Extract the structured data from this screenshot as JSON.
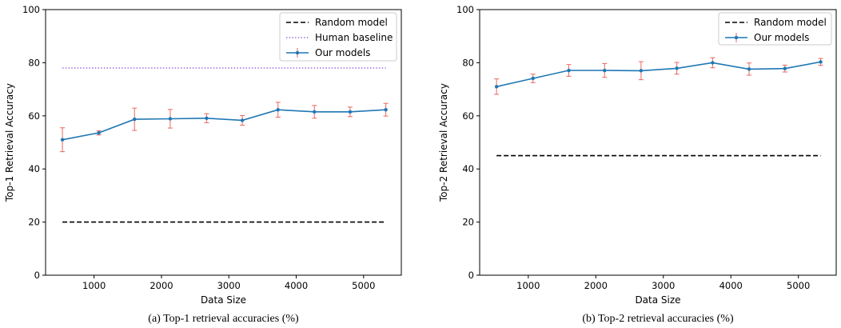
{
  "colors": {
    "series": "#1f77b4",
    "errorbar": "#e8675f",
    "random": "#000000",
    "human": "#9e6fe0"
  },
  "chart_data": [
    {
      "type": "line",
      "caption": "(a)  Top-1 retrieval accuracies (%)",
      "xlabel": "Data Size",
      "ylabel": "Top-1 Retrieval Accuracy",
      "xlim": [
        280,
        5560
      ],
      "ylim": [
        0,
        100
      ],
      "xticks": [
        1000,
        2000,
        3000,
        4000,
        5000
      ],
      "yticks": [
        0,
        20,
        40,
        60,
        80,
        100
      ],
      "grid": false,
      "legend_position": "top-right",
      "series": [
        {
          "name": "Random model",
          "style": "dashed",
          "x": [
            530,
            5330
          ],
          "y": [
            20,
            20
          ]
        },
        {
          "name": "Human baseline",
          "style": "dotted",
          "x": [
            530,
            5330
          ],
          "y": [
            78,
            78
          ]
        },
        {
          "name": "Our models",
          "style": "solid-marker",
          "x": [
            530,
            1070,
            1600,
            2130,
            2670,
            3200,
            3730,
            4270,
            4800,
            5330
          ],
          "y": [
            51.0,
            53.6,
            58.7,
            58.9,
            59.1,
            58.3,
            62.3,
            61.5,
            61.5,
            62.3
          ],
          "error": [
            4.5,
            0.8,
            4.2,
            3.5,
            1.7,
            1.8,
            2.8,
            2.4,
            1.8,
            2.4
          ]
        }
      ]
    },
    {
      "type": "line",
      "caption": "(b)  Top-2 retrieval accuracies (%)",
      "xlabel": "Data Size",
      "ylabel": "Top-2 Retrieval Accuracy",
      "xlim": [
        280,
        5560
      ],
      "ylim": [
        0,
        100
      ],
      "xticks": [
        1000,
        2000,
        3000,
        4000,
        5000
      ],
      "yticks": [
        0,
        20,
        40,
        60,
        80,
        100
      ],
      "grid": false,
      "legend_position": "top-right",
      "series": [
        {
          "name": "Random model",
          "style": "dashed",
          "x": [
            530,
            5330
          ],
          "y": [
            45,
            45
          ]
        },
        {
          "name": "Our models",
          "style": "solid-marker",
          "x": [
            530,
            1070,
            1600,
            2130,
            2670,
            3200,
            3730,
            4270,
            4800,
            5330
          ],
          "y": [
            71.0,
            74.1,
            77.1,
            77.1,
            77.0,
            77.9,
            80.0,
            77.6,
            77.8,
            80.3
          ],
          "error": [
            2.9,
            1.6,
            2.2,
            2.6,
            3.4,
            2.2,
            1.9,
            2.3,
            1.3,
            1.3
          ]
        }
      ]
    }
  ]
}
